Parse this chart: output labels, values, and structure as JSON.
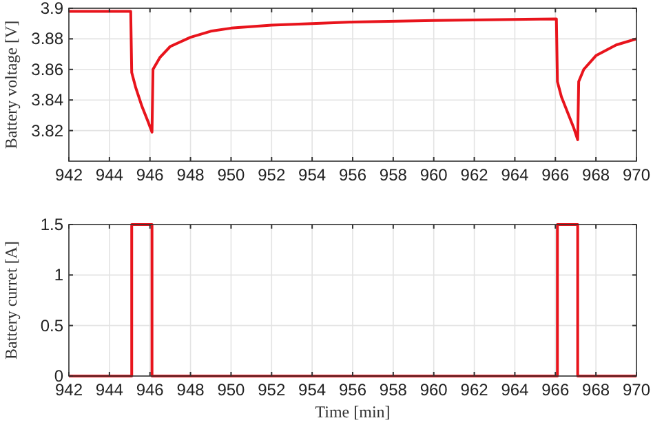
{
  "chart_data": [
    {
      "type": "line",
      "ylabel": "Battery voltage [V]",
      "xlim": [
        942,
        970
      ],
      "xticks": [
        942,
        944,
        946,
        948,
        950,
        952,
        954,
        956,
        958,
        960,
        962,
        964,
        966,
        968,
        970
      ],
      "ylim": [
        3.8,
        3.9
      ],
      "yticks": [
        {
          "value": 3.82,
          "label": "3.82"
        },
        {
          "value": 3.84,
          "label": "3.84"
        },
        {
          "value": 3.86,
          "label": "3.86"
        },
        {
          "value": 3.88,
          "label": "3.88"
        },
        {
          "value": 3.9,
          "label": "3.9"
        }
      ],
      "grid": true,
      "line_style": "solid",
      "marker": "none",
      "series": [
        {
          "color": "#e8141c",
          "x": [
            942,
            945.05,
            945.1,
            945.3,
            945.6,
            945.9,
            946.1,
            946.15,
            946.5,
            947,
            948,
            949,
            950,
            952,
            954,
            956,
            960,
            966.05,
            966.1,
            966.3,
            966.6,
            966.9,
            967.1,
            967.15,
            967.4,
            968,
            969,
            970
          ],
          "values": [
            3.898,
            3.898,
            3.858,
            3.848,
            3.836,
            3.826,
            3.819,
            3.86,
            3.868,
            3.875,
            3.881,
            3.885,
            3.887,
            3.889,
            3.89,
            3.891,
            3.892,
            3.893,
            3.852,
            3.842,
            3.832,
            3.822,
            3.814,
            3.852,
            3.86,
            3.869,
            3.876,
            3.88
          ]
        }
      ]
    },
    {
      "type": "line",
      "xlabel": "Time [min]",
      "ylabel": "Battery curret [A]",
      "xlim": [
        942,
        970
      ],
      "xticks": [
        942,
        944,
        946,
        948,
        950,
        952,
        954,
        956,
        958,
        960,
        962,
        964,
        966,
        968,
        970
      ],
      "ylim": [
        0,
        1.5
      ],
      "yticks": [
        0,
        0.5,
        1,
        1.5
      ],
      "grid": true,
      "line_style": "solid",
      "marker": "none",
      "series": [
        {
          "color": "#e8141c",
          "x": [
            942,
            945.1,
            945.1,
            946.1,
            946.1,
            966.1,
            966.1,
            967.1,
            967.1,
            970
          ],
          "values": [
            0,
            0,
            1.5,
            1.5,
            0,
            0,
            1.5,
            1.5,
            0,
            0
          ]
        }
      ]
    }
  ]
}
